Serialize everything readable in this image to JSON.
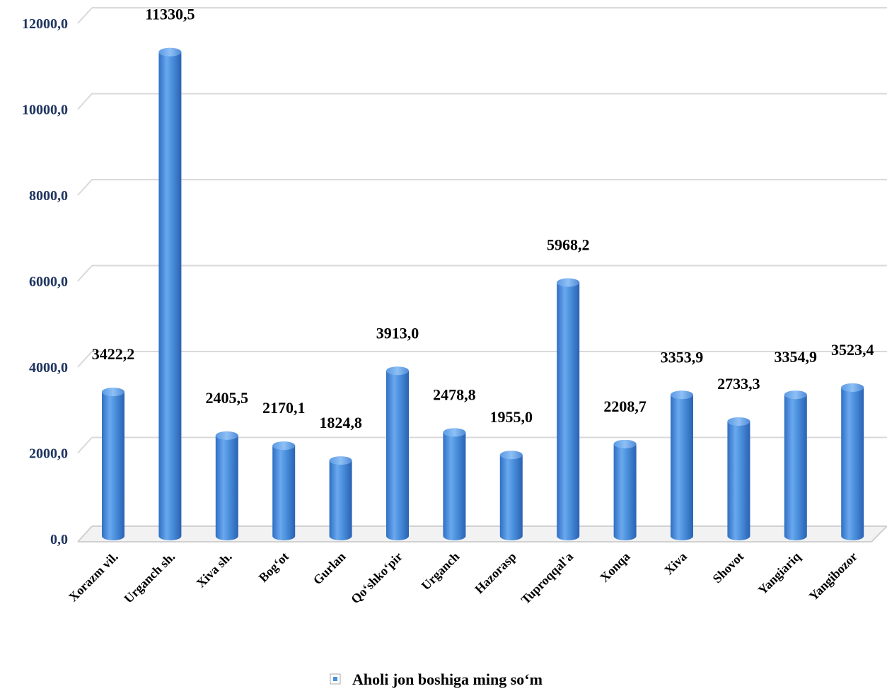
{
  "chart_data": {
    "type": "bar",
    "categories": [
      "Xorazm vil.",
      "Urganch sh.",
      "Xiva sh.",
      "Bog‘ot",
      "Gurlan",
      "Qo‘shko‘pir",
      "Urganch",
      "Hazorasp",
      "Tuproqqal'a",
      "Xonqa",
      "Xiva",
      "Shovot",
      "Yangiariq",
      "Yangibozor"
    ],
    "series": [
      {
        "name": "Aholi jon boshiga ming so‘m",
        "values": [
          3422.2,
          11330.5,
          2405.5,
          2170.1,
          1824.8,
          3913.0,
          2478.8,
          1955.0,
          5968.2,
          2208.7,
          3353.9,
          2733.3,
          3354.9,
          3523.4
        ],
        "value_labels": [
          "3422,2",
          "11330,5",
          "2405,5",
          "2170,1",
          "1824,8",
          "3913,0",
          "2478,8",
          "1955,0",
          "5968,2",
          "2208,7",
          "3353,9",
          "2733,3",
          "3354,9",
          "3523,4"
        ]
      }
    ],
    "yticks": [
      0,
      2000,
      4000,
      6000,
      8000,
      10000,
      12000
    ],
    "ytick_labels": [
      "0,0",
      "2000,0",
      "4000,0",
      "6000,0",
      "8000,0",
      "10000,0",
      "12000,0"
    ],
    "ylim": [
      0,
      12000
    ],
    "grid": true,
    "legend_position": "bottom-center",
    "bar_color": "#4a8fdc"
  }
}
